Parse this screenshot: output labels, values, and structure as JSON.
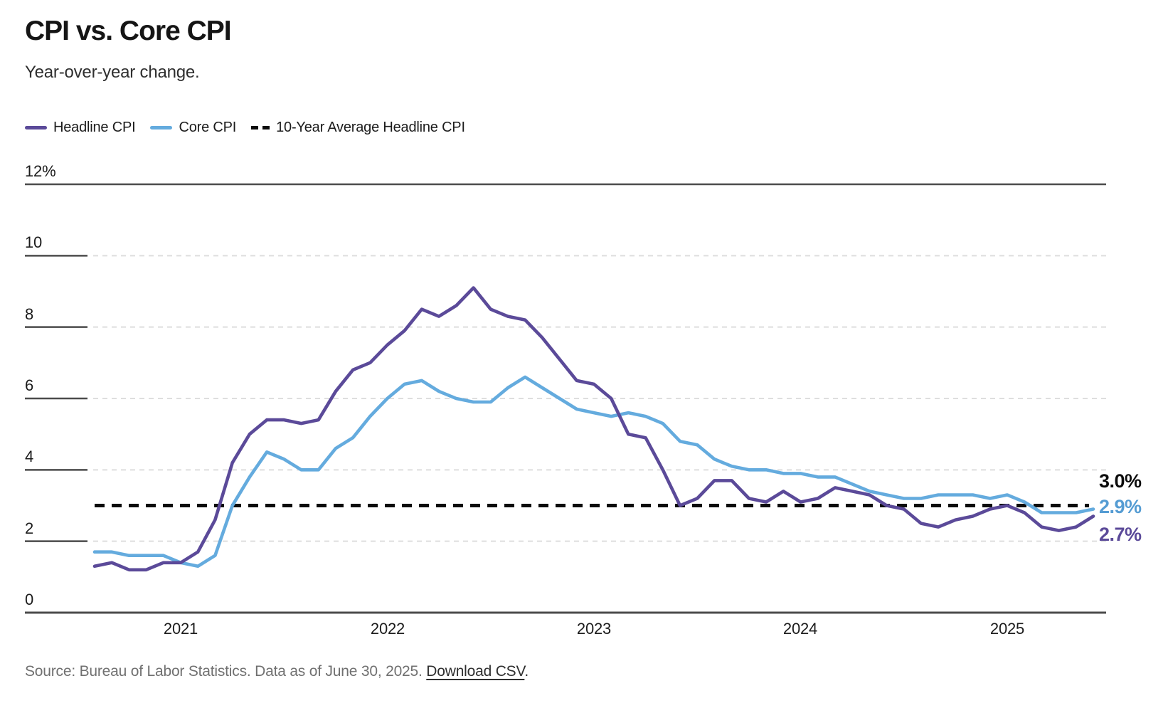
{
  "title": "CPI vs. Core CPI",
  "subtitle": "Year-over-year change.",
  "legend": [
    {
      "label": "Headline CPI",
      "swatch": "line",
      "color": "#5b4a99"
    },
    {
      "label": "Core CPI",
      "swatch": "line",
      "color": "#64abde"
    },
    {
      "label": "10-Year Average Headline CPI",
      "swatch": "dashed",
      "color": "#0c0c0c"
    }
  ],
  "end_labels": [
    {
      "text": "3.0%",
      "color": "#0c0c0c"
    },
    {
      "text": "2.9%",
      "color": "#559cd3"
    },
    {
      "text": "2.7%",
      "color": "#5b4a99"
    }
  ],
  "source": {
    "prefix": "Source: Bureau of Labor Statistics. Data as of June 30, 2025. ",
    "link": "Download CSV",
    "suffix": "."
  },
  "chart_data": {
    "type": "line",
    "title": "CPI vs. Core CPI",
    "subtitle": "Year-over-year change.",
    "x_start": "2020-08",
    "x_end": "2025-06",
    "x_frequency": "monthly",
    "ylim": [
      0,
      12
    ],
    "grid": "horizontal-dashed",
    "y_ticks": [
      {
        "label": "12%",
        "value": 12
      },
      {
        "label": "10",
        "value": 10
      },
      {
        "label": "8",
        "value": 8
      },
      {
        "label": "6",
        "value": 6
      },
      {
        "label": "4",
        "value": 4
      },
      {
        "label": "2",
        "value": 2
      },
      {
        "label": "0",
        "value": 0
      }
    ],
    "x_ticks": [
      {
        "label": "2021"
      },
      {
        "label": "2022"
      },
      {
        "label": "2023"
      },
      {
        "label": "2024"
      },
      {
        "label": "2025"
      }
    ],
    "average_line": {
      "label": "10-Year Average Headline CPI",
      "value": 3.0,
      "end_label": "3.0%"
    },
    "series": [
      {
        "name": "Headline CPI",
        "color": "#5b4a99",
        "end_label": "2.7%",
        "last_value": 2.7,
        "values": [
          1.3,
          1.4,
          1.2,
          1.2,
          1.4,
          1.4,
          1.7,
          2.6,
          4.2,
          5.0,
          5.4,
          5.4,
          5.3,
          5.4,
          6.2,
          6.8,
          7.0,
          7.5,
          7.9,
          8.5,
          8.3,
          8.6,
          9.1,
          8.5,
          8.3,
          8.2,
          7.7,
          7.1,
          6.5,
          6.4,
          6.0,
          5.0,
          4.9,
          4.0,
          3.0,
          3.2,
          3.7,
          3.7,
          3.2,
          3.1,
          3.4,
          3.1,
          3.2,
          3.5,
          3.4,
          3.3,
          3.0,
          2.9,
          2.5,
          2.4,
          2.6,
          2.7,
          2.9,
          3.0,
          2.8,
          2.4,
          2.3,
          2.4,
          2.7
        ]
      },
      {
        "name": "Core CPI",
        "color": "#64abde",
        "end_label": "2.9%",
        "last_value": 2.9,
        "values": [
          1.7,
          1.7,
          1.6,
          1.6,
          1.6,
          1.4,
          1.3,
          1.6,
          3.0,
          3.8,
          4.5,
          4.3,
          4.0,
          4.0,
          4.6,
          4.9,
          5.5,
          6.0,
          6.4,
          6.5,
          6.2,
          6.0,
          5.9,
          5.9,
          6.3,
          6.6,
          6.3,
          6.0,
          5.7,
          5.6,
          5.5,
          5.6,
          5.5,
          5.3,
          4.8,
          4.7,
          4.3,
          4.1,
          4.0,
          4.0,
          3.9,
          3.9,
          3.8,
          3.8,
          3.6,
          3.4,
          3.3,
          3.2,
          3.2,
          3.3,
          3.3,
          3.3,
          3.2,
          3.3,
          3.1,
          2.8,
          2.8,
          2.8,
          2.9
        ]
      }
    ]
  }
}
